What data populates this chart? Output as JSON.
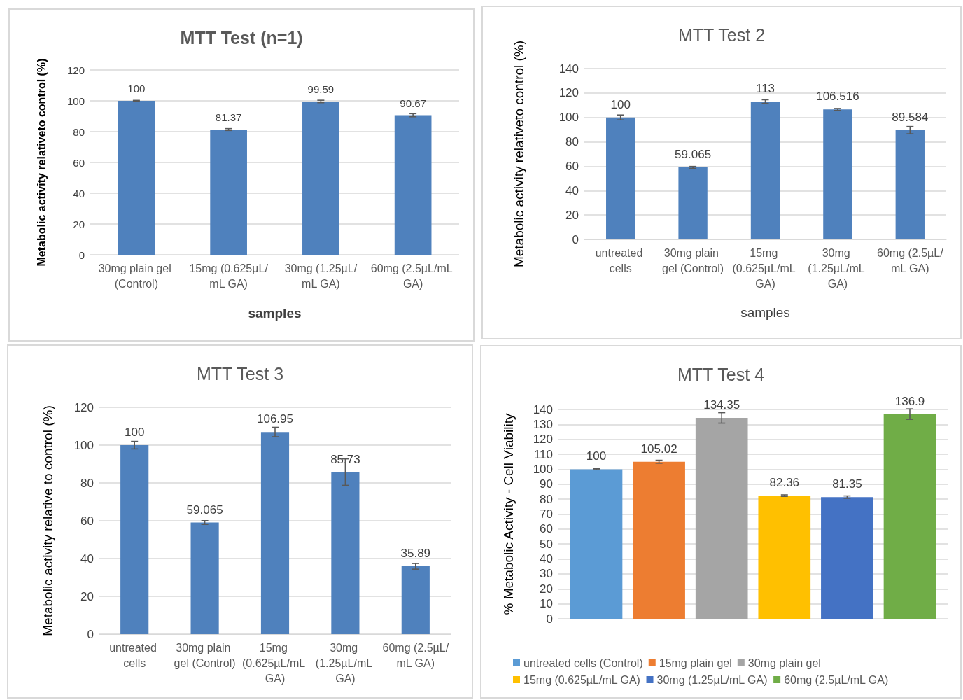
{
  "chart_data": [
    {
      "type": "bar",
      "title": "MTT Test (n=1)",
      "xlabel": "samples",
      "ylabel": "Metabolic activity relativeto control (%)",
      "categories": [
        "30mg plain gel (Control)",
        "15mg (0.625µL/mL GA)",
        "30mg (1.25µL/mL GA)",
        "60mg (2.5µL/mL GA)"
      ],
      "series": [
        {
          "color": "#4f81bd",
          "values": [
            100,
            81.37,
            99.59,
            90.67
          ],
          "errors": [
            0.3,
            0.6,
            0.8,
            1
          ]
        }
      ],
      "ylim": [
        0,
        120
      ],
      "yticks": [
        0,
        20,
        40,
        60,
        80,
        100,
        120
      ],
      "grid": "y",
      "data_labels": true
    },
    {
      "type": "bar",
      "title": "MTT Test 2",
      "xlabel": "samples",
      "ylabel": "Metabolic activity relativeto control (%)",
      "categories": [
        "untreated cells",
        "30mg plain gel (Control)",
        "15mg (0.625µL/mL GA)",
        "30mg (1.25µL/mL GA)",
        "60mg (2.5µL/mL GA)"
      ],
      "series": [
        {
          "color": "#4f81bd",
          "values": [
            100,
            59.065,
            113,
            106.516,
            89.584
          ],
          "errors": [
            2,
            0.8,
            1.5,
            0.8,
            3
          ]
        }
      ],
      "ylim": [
        0,
        140
      ],
      "yticks": [
        0,
        20,
        40,
        60,
        80,
        100,
        120,
        140
      ],
      "grid": "y",
      "data_labels": true
    },
    {
      "type": "bar",
      "title": "MTT Test 3",
      "ylabel": "Metabolic activity relative to control (%)",
      "categories": [
        "untreated cells",
        "30mg plain gel (Control)",
        "15mg (0.625µL/mL GA)",
        "30mg (1.25µL/mL GA)",
        "60mg (2.5µL/mL GA)"
      ],
      "series": [
        {
          "color": "#4f81bd",
          "values": [
            100,
            59.065,
            106.95,
            85.73,
            35.89
          ],
          "errors": [
            2,
            1,
            2.5,
            7,
            1.5
          ]
        }
      ],
      "ylim": [
        0,
        120
      ],
      "yticks": [
        0,
        20,
        40,
        60,
        80,
        100,
        120
      ],
      "grid": "y",
      "data_labels": true
    },
    {
      "type": "bar",
      "title": "MTT Test 4",
      "ylabel": "% Metabolic Activity - Cell Viability",
      "categories": [
        null
      ],
      "series": [
        {
          "name": "untreated cells (Control)",
          "color": "#5b9bd5",
          "values": [
            100
          ],
          "errors": [
            0.3
          ]
        },
        {
          "name": "15mg plain gel",
          "color": "#ed7d31",
          "values": [
            105.02
          ],
          "errors": [
            1
          ]
        },
        {
          "name": "30mg plain gel",
          "color": "#a5a5a5",
          "values": [
            134.35
          ],
          "errors": [
            3.5
          ]
        },
        {
          "name": "15mg (0.625µL/mL GA)",
          "color": "#ffc000",
          "values": [
            82.36
          ],
          "errors": [
            0.5
          ]
        },
        {
          "name": "30mg (1.25µL/mL GA)",
          "color": "#4472c4",
          "values": [
            81.35
          ],
          "errors": [
            0.8
          ]
        },
        {
          "name": "60mg (2.5µL/mL GA)",
          "color": "#70ad47",
          "values": [
            136.9
          ],
          "errors": [
            3.5
          ]
        }
      ],
      "ylim": [
        0,
        140
      ],
      "yticks": [
        0,
        10,
        20,
        30,
        40,
        50,
        60,
        70,
        80,
        90,
        100,
        110,
        120,
        130,
        140
      ],
      "grid": "y",
      "data_labels": true,
      "legend": "bottom"
    }
  ]
}
